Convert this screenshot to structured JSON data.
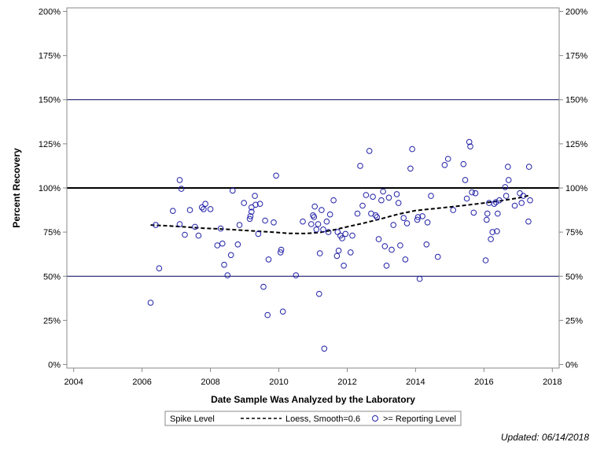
{
  "chart_data": {
    "type": "scatter",
    "xlabel": "Date Sample Was Analyzed by the Laboratory",
    "ylabel": "Percent Recovery",
    "xlim": [
      2003.8,
      2018.2
    ],
    "ylim": [
      -2,
      202
    ],
    "x_ticks": [
      2004,
      2006,
      2008,
      2010,
      2012,
      2014,
      2016,
      2018
    ],
    "x_tick_labels": [
      "2004",
      "2006",
      "2008",
      "2010",
      "2012",
      "2014",
      "2016",
      "2018"
    ],
    "y_ticks": [
      0,
      25,
      50,
      75,
      100,
      125,
      150,
      175,
      200
    ],
    "y_tick_labels": [
      "0%",
      "25%",
      "50%",
      "75%",
      "100%",
      "125%",
      "150%",
      "175%",
      "200%"
    ],
    "reference_lines": [
      {
        "y": 50,
        "style": "thin"
      },
      {
        "y": 100,
        "style": "thick",
        "name": "Spike Level"
      },
      {
        "y": 150,
        "style": "thin"
      }
    ],
    "series": [
      {
        "name": "Loess, Smooth=0.6",
        "type": "line",
        "style": "dashed",
        "color": "#000000",
        "x": [
          2006.25,
          2006.7,
          2007.2,
          2007.8,
          2008.3,
          2008.8,
          2009.3,
          2009.8,
          2010.3,
          2010.8,
          2011.2,
          2011.6,
          2012.0,
          2012.5,
          2013.0,
          2013.5,
          2014.0,
          2014.5,
          2015.0,
          2015.5,
          2016.0,
          2016.5,
          2017.0,
          2017.3
        ],
        "y": [
          79,
          78.6,
          78,
          77.2,
          76.8,
          76.2,
          75.6,
          75,
          74.3,
          74.2,
          74.8,
          76.2,
          78,
          80.2,
          82.6,
          85.2,
          87.2,
          88.2,
          89.2,
          90.3,
          91.5,
          92.8,
          94.3,
          95.7
        ]
      },
      {
        "name": ">= Reporting Level",
        "type": "scatter",
        "marker": "open-circle",
        "color": "#2020a8",
        "points": [
          [
            2006.25,
            35
          ],
          [
            2006.4,
            79
          ],
          [
            2006.5,
            54.5
          ],
          [
            2006.9,
            87
          ],
          [
            2007.1,
            79.5
          ],
          [
            2007.1,
            104.5
          ],
          [
            2007.15,
            99.5
          ],
          [
            2007.25,
            73.5
          ],
          [
            2007.4,
            87.5
          ],
          [
            2007.55,
            78
          ],
          [
            2007.65,
            73
          ],
          [
            2007.75,
            89
          ],
          [
            2007.8,
            88
          ],
          [
            2007.85,
            91
          ],
          [
            2008.0,
            88
          ],
          [
            2008.2,
            67.5
          ],
          [
            2008.3,
            77
          ],
          [
            2008.35,
            68.5
          ],
          [
            2008.4,
            56.5
          ],
          [
            2008.5,
            50.5
          ],
          [
            2008.6,
            62
          ],
          [
            2008.65,
            98.5
          ],
          [
            2008.8,
            68
          ],
          [
            2008.85,
            79
          ],
          [
            2008.98,
            91.5
          ],
          [
            2009.15,
            82.5
          ],
          [
            2009.17,
            84
          ],
          [
            2009.2,
            86.5
          ],
          [
            2009.2,
            89
          ],
          [
            2009.3,
            95.5
          ],
          [
            2009.32,
            90.5
          ],
          [
            2009.4,
            74
          ],
          [
            2009.45,
            91
          ],
          [
            2009.55,
            44
          ],
          [
            2009.6,
            81.5
          ],
          [
            2009.67,
            28
          ],
          [
            2009.7,
            59.5
          ],
          [
            2009.85,
            80.5
          ],
          [
            2009.92,
            107
          ],
          [
            2010.05,
            63.5
          ],
          [
            2010.07,
            65
          ],
          [
            2010.12,
            30
          ],
          [
            2010.5,
            50.5
          ],
          [
            2010.7,
            81
          ],
          [
            2010.95,
            79.5
          ],
          [
            2011.0,
            84.5
          ],
          [
            2011.03,
            83.5
          ],
          [
            2011.05,
            89.5
          ],
          [
            2011.1,
            76.5
          ],
          [
            2011.15,
            79.5
          ],
          [
            2011.18,
            40
          ],
          [
            2011.2,
            63
          ],
          [
            2011.25,
            87.5
          ],
          [
            2011.3,
            76.5
          ],
          [
            2011.33,
            9
          ],
          [
            2011.4,
            81
          ],
          [
            2011.45,
            75
          ],
          [
            2011.5,
            85
          ],
          [
            2011.6,
            93
          ],
          [
            2011.7,
            61.5
          ],
          [
            2011.72,
            75
          ],
          [
            2011.75,
            64.5
          ],
          [
            2011.8,
            73
          ],
          [
            2011.85,
            71.5
          ],
          [
            2011.9,
            56
          ],
          [
            2011.95,
            74
          ],
          [
            2012.1,
            63.5
          ],
          [
            2012.15,
            73
          ],
          [
            2012.3,
            85.5
          ],
          [
            2012.38,
            112.5
          ],
          [
            2012.45,
            90
          ],
          [
            2012.55,
            96
          ],
          [
            2012.65,
            121
          ],
          [
            2012.7,
            85.5
          ],
          [
            2012.75,
            95
          ],
          [
            2012.83,
            84.5
          ],
          [
            2012.87,
            83.5
          ],
          [
            2012.92,
            71
          ],
          [
            2013.0,
            93
          ],
          [
            2013.05,
            98
          ],
          [
            2013.1,
            67
          ],
          [
            2013.15,
            56
          ],
          [
            2013.22,
            94.5
          ],
          [
            2013.3,
            65
          ],
          [
            2013.35,
            79
          ],
          [
            2013.45,
            96.5
          ],
          [
            2013.5,
            91.5
          ],
          [
            2013.55,
            67.5
          ],
          [
            2013.65,
            83
          ],
          [
            2013.7,
            59.5
          ],
          [
            2013.75,
            80
          ],
          [
            2013.85,
            111
          ],
          [
            2013.9,
            122
          ],
          [
            2014.05,
            82
          ],
          [
            2014.07,
            83.5
          ],
          [
            2014.12,
            48.5
          ],
          [
            2014.2,
            84
          ],
          [
            2014.32,
            68
          ],
          [
            2014.35,
            80.5
          ],
          [
            2014.45,
            95.5
          ],
          [
            2014.65,
            61
          ],
          [
            2014.85,
            113
          ],
          [
            2014.95,
            116.5
          ],
          [
            2015.1,
            87.5
          ],
          [
            2015.4,
            113.5
          ],
          [
            2015.45,
            104.5
          ],
          [
            2015.5,
            94
          ],
          [
            2015.57,
            126
          ],
          [
            2015.6,
            123.5
          ],
          [
            2015.65,
            97.5
          ],
          [
            2015.7,
            86
          ],
          [
            2015.75,
            97
          ],
          [
            2016.05,
            59
          ],
          [
            2016.08,
            82
          ],
          [
            2016.1,
            85.5
          ],
          [
            2016.15,
            91.5
          ],
          [
            2016.2,
            71
          ],
          [
            2016.25,
            75
          ],
          [
            2016.3,
            91
          ],
          [
            2016.35,
            92
          ],
          [
            2016.38,
            75.5
          ],
          [
            2016.4,
            85.5
          ],
          [
            2016.45,
            93
          ],
          [
            2016.62,
            100.5
          ],
          [
            2016.65,
            95.5
          ],
          [
            2016.7,
            112
          ],
          [
            2016.72,
            104.5
          ],
          [
            2016.9,
            90
          ],
          [
            2017.05,
            97
          ],
          [
            2017.1,
            91.5
          ],
          [
            2017.15,
            95.5
          ],
          [
            2017.3,
            81
          ],
          [
            2017.32,
            112
          ],
          [
            2017.35,
            93
          ]
        ]
      }
    ],
    "legend": {
      "placement": "bottom",
      "items": [
        {
          "label": "Spike Level",
          "symbol": "none"
        },
        {
          "label": "Loess, Smooth=0.6",
          "symbol": "dashed-line"
        },
        {
          "label": ">= Reporting Level",
          "symbol": "open-circle"
        }
      ]
    },
    "grid": "reference lines only"
  },
  "footer": {
    "updated_text": "Updated: 06/14/2018"
  },
  "colors": {
    "marker": "#2020a8",
    "reference_line": "#00005a",
    "frame": "#888888"
  }
}
